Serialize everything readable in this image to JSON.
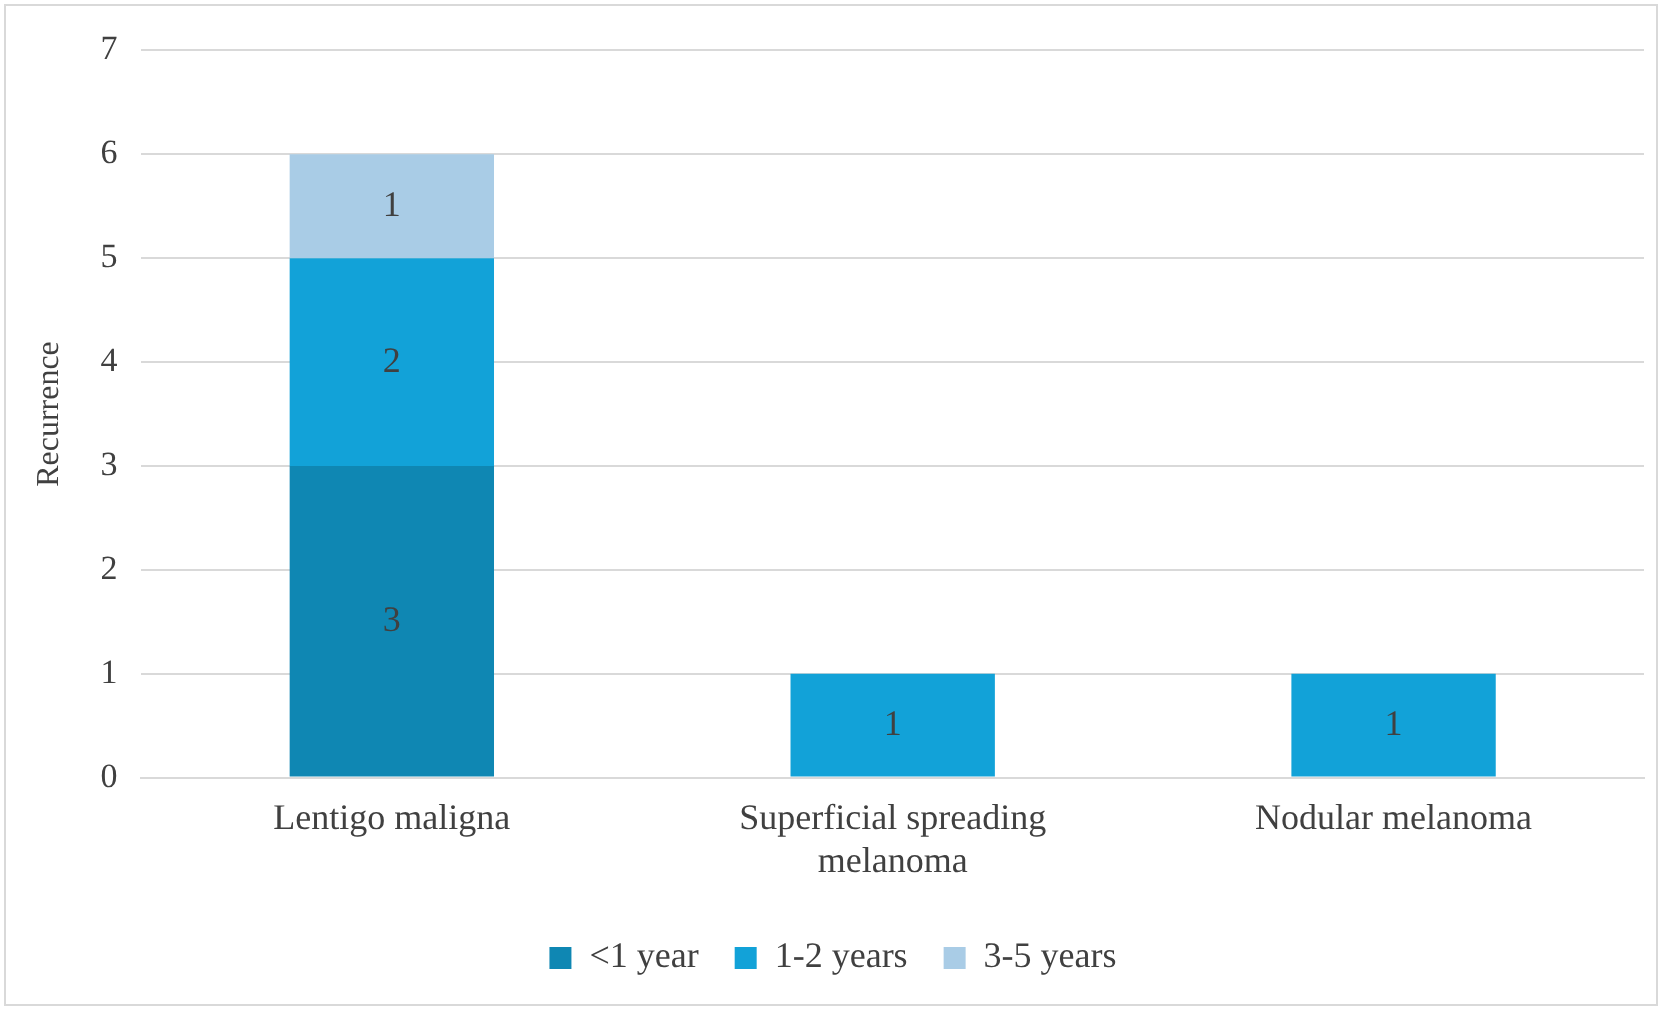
{
  "chart_data": {
    "type": "bar",
    "ylabel": "Recurrence",
    "categories": [
      "Lentigo maligna",
      "Superficial spreading melanoma",
      "Nodular melanoma"
    ],
    "series": [
      {
        "name": "<1 year",
        "color": "#0f87b3",
        "values": [
          3,
          null,
          null
        ]
      },
      {
        "name": "1-2 years",
        "color": "#12a2d8",
        "values": [
          2,
          1,
          1
        ]
      },
      {
        "name": "3-5 years",
        "color": "#a9cce6",
        "values": [
          1,
          null,
          null
        ]
      }
    ],
    "stacked": true,
    "ylim": [
      0,
      7
    ],
    "yticks": [
      0,
      1,
      2,
      3,
      4,
      5,
      6,
      7
    ],
    "grid": "y",
    "legend": "bottom",
    "data_labels": true
  }
}
